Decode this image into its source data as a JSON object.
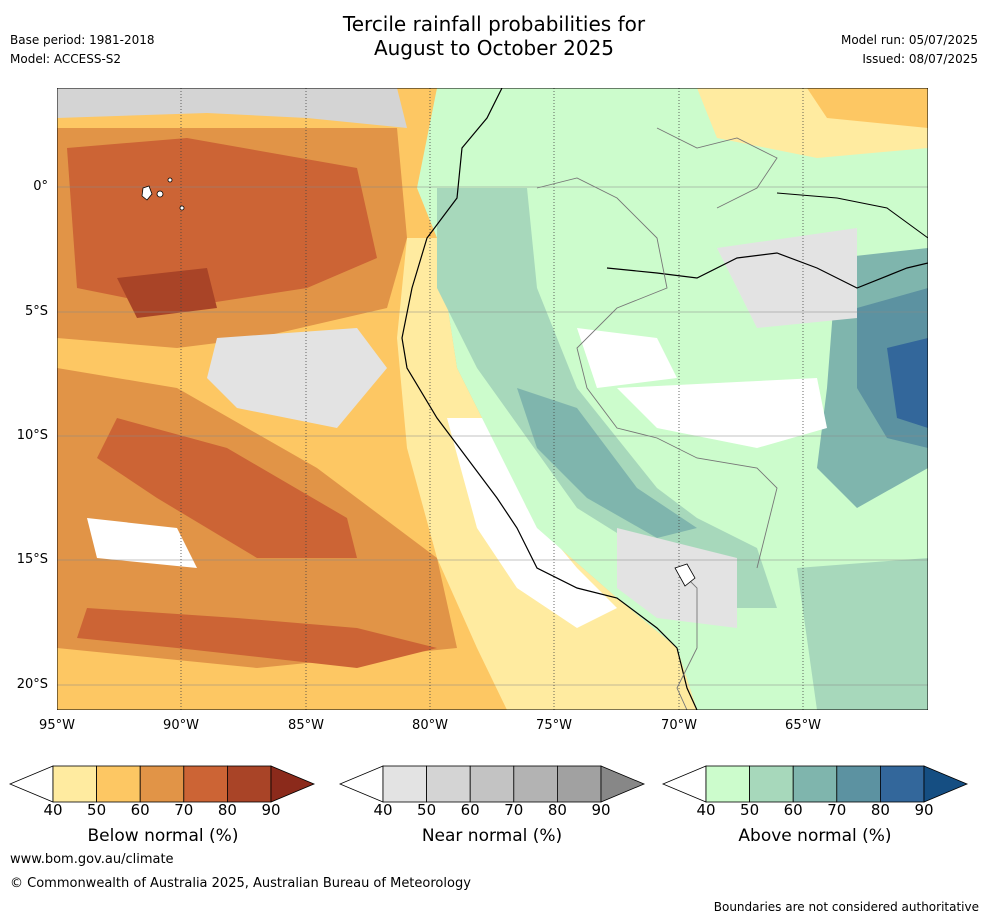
{
  "title": {
    "line1": "Tercile rainfall probabilities for",
    "line2": "August to October 2025"
  },
  "meta": {
    "base_period": "Base period: 1981-2018",
    "model": "Model: ACCESS-S2",
    "model_run": "Model run: 05/07/2025",
    "issued": "Issued: 08/07/2025"
  },
  "axes": {
    "lat_labels": [
      "0°",
      "5°S",
      "10°S",
      "15°S",
      "20°S"
    ],
    "lon_labels": [
      "95°W",
      "90°W",
      "85°W",
      "80°W",
      "75°W",
      "70°W",
      "65°W"
    ]
  },
  "colorbars": [
    {
      "title": "Below normal (%)",
      "ticks": [
        "40",
        "50",
        "60",
        "70",
        "80",
        "90"
      ],
      "colors": [
        "#ffeba0",
        "#fdc763",
        "#e19447",
        "#cc6435",
        "#a94427",
        "#8b2a1b"
      ]
    },
    {
      "title": "Near normal (%)",
      "ticks": [
        "40",
        "50",
        "60",
        "70",
        "80",
        "90"
      ],
      "colors": [
        "#e3e3e3",
        "#d4d4d4",
        "#c3c3c3",
        "#b3b3b3",
        "#a1a1a1",
        "#878787"
      ]
    },
    {
      "title": "Above normal (%)",
      "ticks": [
        "40",
        "50",
        "60",
        "70",
        "80",
        "90"
      ],
      "colors": [
        "#ccfccc",
        "#a7d8bb",
        "#7fb5ad",
        "#5c92a1",
        "#33679b",
        "#154e82"
      ]
    }
  ],
  "footer": {
    "website": "www.bom.gov.au/climate",
    "copyright": "© Commonwealth of Australia 2025, Australian Bureau of Meteorology",
    "disclaimer": "Boundaries are not considered authoritative"
  }
}
